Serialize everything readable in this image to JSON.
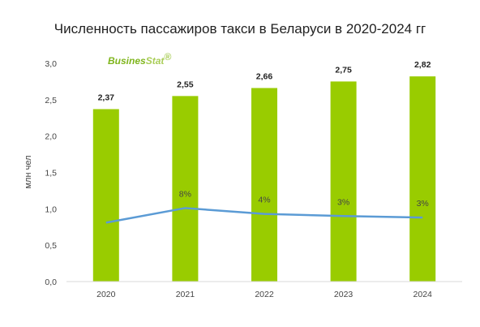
{
  "chart_data": {
    "type": "bar",
    "title": "Численность пассажиров такси в Беларуси в 2020-2024 гг",
    "ylabel": "млн чел",
    "xlabel": "",
    "categories": [
      "2020",
      "2021",
      "2022",
      "2023",
      "2024"
    ],
    "values": [
      2.37,
      2.55,
      2.66,
      2.75,
      2.82
    ],
    "value_labels": [
      "2,37",
      "2,55",
      "2,66",
      "2,75",
      "2,82"
    ],
    "ylim": [
      0,
      3.0
    ],
    "yticks": [
      "0,0",
      "0,5",
      "1,0",
      "1,5",
      "2,0",
      "2,5",
      "3,0"
    ],
    "grid": false,
    "bar_color": "#99cc00",
    "growth_line": {
      "color": "#5b9bd5",
      "values_on_left_axis": [
        0.81,
        1.01,
        0.93,
        0.9,
        0.88
      ],
      "labels": [
        "",
        "8%",
        "4%",
        "3%",
        "3%"
      ]
    },
    "logo": {
      "part1": "Busines",
      "part2": "Stat",
      "mark": "®"
    }
  }
}
